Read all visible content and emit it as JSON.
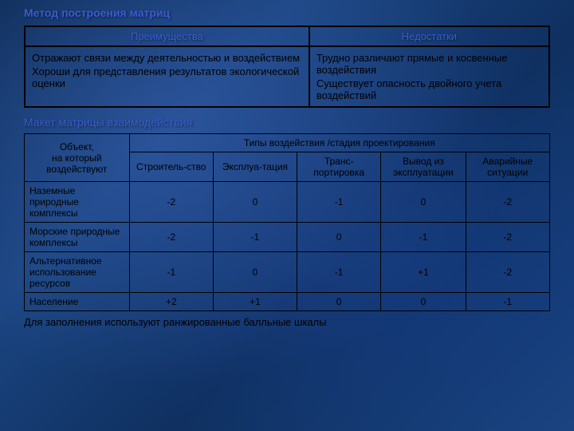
{
  "slide": {
    "title1": "Метод  построения матриц",
    "title2": "Макет матрицы взаимодействия",
    "footer": "Для заполнения используют ранжированные балльные шкалы",
    "background_colors": [
      "#0a2850",
      "#1a4480",
      "#0f3060"
    ],
    "title_color": "#3a5bd0",
    "text_color": "#000000",
    "border_color": "#000000"
  },
  "table1": {
    "headers": [
      "Преимущества",
      "Недостатки"
    ],
    "row": {
      "adv1": "Отражают связи между деятельностью и воздействием",
      "adv2": "Хороши для представления результатов экологической оценки",
      "dis1": "Трудно различают прямые и косвенные воздействия",
      "dis2": "Существует опасность двойного учета воздействий"
    }
  },
  "table2": {
    "corner_top": "Объект,",
    "corner_bottom": "на который воздействуют",
    "span_header": "Типы воздействия /стадия проектирования",
    "columns": [
      "Строитель-ство",
      "Эксплуа-тация",
      "Транс-портировка",
      "Вывод из эксплуатации",
      "Аварийные ситуации"
    ],
    "rows": [
      {
        "label": "Наземные природные комплексы",
        "vals": [
          "-2",
          "0",
          "-1",
          "0",
          "-2"
        ]
      },
      {
        "label": "Морские природные комплексы",
        "vals": [
          "-2",
          "-1",
          "0",
          "-1",
          "-2"
        ]
      },
      {
        "label": "Альтернативное использование ресурсов",
        "vals": [
          "-1",
          "0",
          "-1",
          "+1",
          "-2"
        ]
      },
      {
        "label": "Население",
        "vals": [
          "+2",
          "+1",
          "0",
          "0",
          "-1"
        ]
      }
    ]
  }
}
